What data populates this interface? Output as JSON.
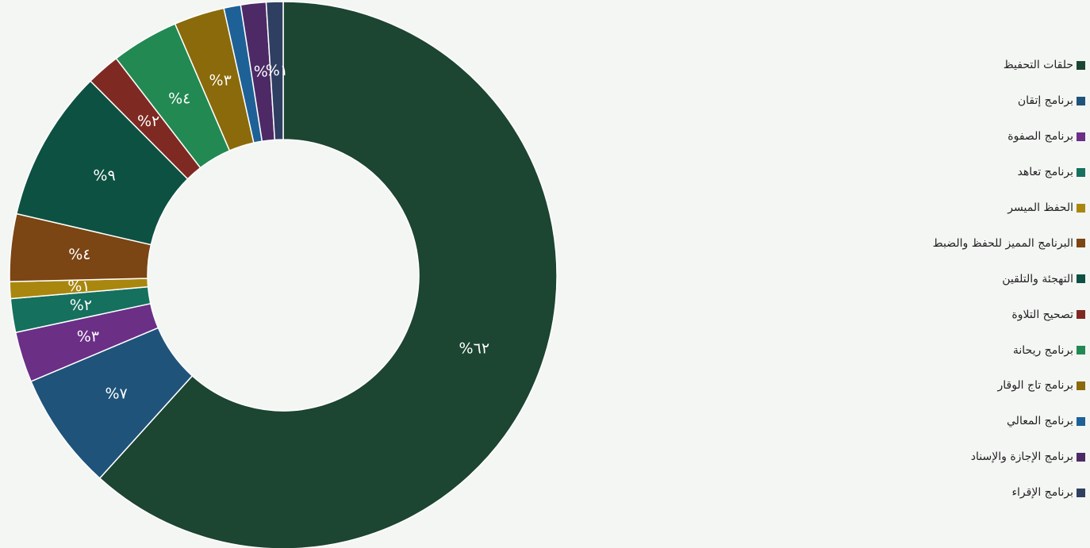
{
  "chart_data": {
    "type": "pie",
    "donut": true,
    "legend_position": "right",
    "label_format": "arabic-indic percent",
    "categories": [
      "حلقات التحفيظ",
      "برنامج إتقان",
      "برنامج الصفوة",
      "برنامج تعاهد",
      "الحفظ الميسر",
      "البرنامج المميز للحفظ والضبط",
      "التهجئة والتلقين",
      "تصحيح التلاوة",
      "برنامج ريحانة",
      "برنامج تاج الوقار",
      "برنامج المعالي",
      "برنامج الإجازة والإسناد",
      "برنامج الإقراء"
    ],
    "values": [
      62,
      7,
      3,
      2,
      1,
      4,
      9,
      2,
      4,
      3,
      1,
      1.5,
      1
    ],
    "data_labels": [
      "%٦٢",
      "%٧",
      "%٣",
      "%٢",
      "%١",
      "%٤",
      "%٩",
      "%٢",
      "%٤",
      "%٣",
      "",
      "%",
      "%١"
    ],
    "colors": [
      "#1c4532",
      "#1f537a",
      "#6b2f86",
      "#15705e",
      "#a9870f",
      "#7b4514",
      "#0d5142",
      "#7e2a22",
      "#228952",
      "#8a6a0a",
      "#1e6196",
      "#4d2a66",
      "#2f3f62"
    ]
  }
}
